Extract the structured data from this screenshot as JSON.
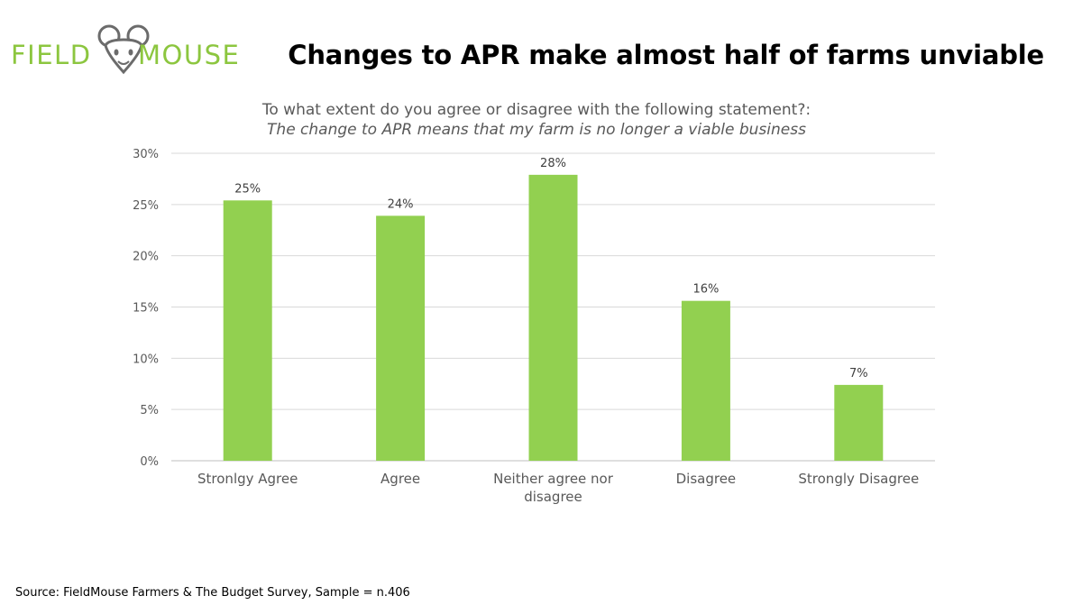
{
  "brand": {
    "logo_left": "FIELD",
    "logo_right": "MOUSE",
    "color": "#8CC63F"
  },
  "headline": "Changes to APR make almost half of farms unviable",
  "chart_data": {
    "type": "bar",
    "title": "To what extent do you agree or disagree with the following statement?:",
    "subtitle": "The change to APR means that my farm is no longer a viable business",
    "categories": [
      "Stronlgy Agree",
      "Agree",
      "Neither agree nor disagree",
      "Disagree",
      "Strongly Disagree"
    ],
    "values": [
      25.4,
      23.9,
      27.9,
      15.6,
      7.4
    ],
    "data_labels": [
      "25%",
      "24%",
      "28%",
      "16%",
      "7%"
    ],
    "y_ticks": [
      "0%",
      "5%",
      "10%",
      "15%",
      "20%",
      "25%",
      "30%"
    ],
    "ylim": [
      0,
      30
    ],
    "grid": true,
    "bar_color": "#92D050"
  },
  "source": "Source: FieldMouse Farmers & The Budget Survey, Sample = n.406"
}
